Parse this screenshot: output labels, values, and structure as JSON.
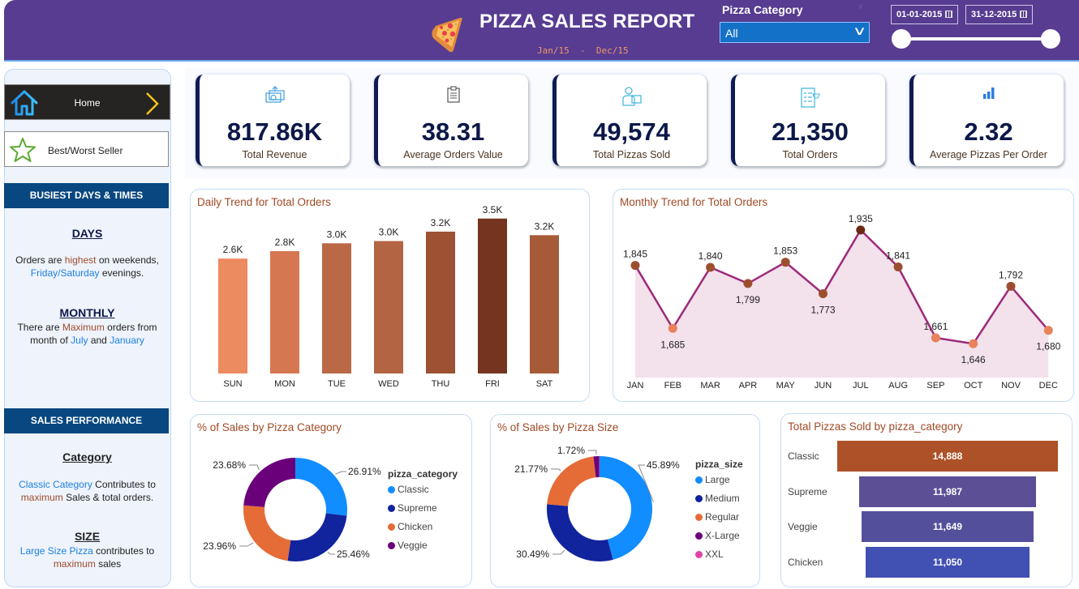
{
  "header": {
    "title": "PIZZA SALES REPORT",
    "subtitle": "Jan/15  -  Dec/15",
    "filter_label": "Pizza Category",
    "filter_value": "All",
    "date_start": "01-01-2015",
    "date_end": "31-12-2015",
    "date_range_fraction": [
      0,
      1
    ],
    "bg_color": "#573c91"
  },
  "sidebar": {
    "nav": [
      {
        "label": "Home",
        "icon": "home-icon"
      },
      {
        "label": "Best/Worst Seller",
        "icon": "star-icon"
      }
    ],
    "busiest_heading": "BUSIEST DAYS & TIMES",
    "days_heading": "DAYS",
    "days_text": [
      {
        "t": "Orders are ",
        "c": ""
      },
      {
        "t": "highest",
        "c": "brown"
      },
      {
        "t": " on weekends, ",
        "c": ""
      },
      {
        "t": "Friday/Saturday",
        "c": "blue"
      },
      {
        "t": " evenings.",
        "c": ""
      }
    ],
    "monthly_heading": "MONTHLY",
    "monthly_text": [
      {
        "t": "There are ",
        "c": ""
      },
      {
        "t": "Maximum",
        "c": "brown"
      },
      {
        "t": " orders from month of ",
        "c": ""
      },
      {
        "t": "July",
        "c": "blue"
      },
      {
        "t": " and ",
        "c": ""
      },
      {
        "t": "January",
        "c": "blue"
      }
    ],
    "sales_heading": "SALES PERFORMANCE",
    "category_heading": "Category",
    "category_text": [
      {
        "t": "Classic Category",
        "c": "blue"
      },
      {
        "t": " Contributes to ",
        "c": ""
      },
      {
        "t": "maximum",
        "c": "brown"
      },
      {
        "t": " Sales & total orders.",
        "c": ""
      }
    ],
    "size_heading": "SIZE",
    "size_text": [
      {
        "t": "Large Size Pizza",
        "c": "blue"
      },
      {
        "t": " contributes to ",
        "c": ""
      },
      {
        "t": "maximum",
        "c": "brown"
      },
      {
        "t": " sales",
        "c": ""
      }
    ]
  },
  "kpis": [
    {
      "value": "817.86K",
      "label": "Total Revenue",
      "icon": "money-icon"
    },
    {
      "value": "38.31",
      "label": "Average Orders Value",
      "icon": "clipboard-icon"
    },
    {
      "value": "49,574",
      "label": "Total Pizzas Sold",
      "icon": "delivery-person-icon"
    },
    {
      "value": "21,350",
      "label": "Total Orders",
      "icon": "order-list-icon"
    },
    {
      "value": "2.32",
      "label": "Average Pizzas Per Order",
      "icon": "bar-chart-icon"
    }
  ],
  "chart_data": [
    {
      "type": "bar",
      "title": "Daily Trend for Total Orders",
      "categories": [
        "SUN",
        "MON",
        "TUE",
        "WED",
        "THU",
        "FRI",
        "SAT"
      ],
      "values": [
        2624,
        2794,
        2973,
        3024,
        3239,
        3538,
        3158
      ],
      "labels": [
        "2.6K",
        "2.8K",
        "3.0K",
        "3.0K",
        "3.2K",
        "3.5K",
        "3.2K"
      ],
      "colors": [
        "#ec8a60",
        "#d57852",
        "#bb6846",
        "#b26443",
        "#9c5233",
        "#74341f",
        "#a65a38"
      ],
      "xlabel": "",
      "ylabel": "",
      "grid": false
    },
    {
      "type": "area",
      "title": "Monthly Trend for Total Orders",
      "categories": [
        "JAN",
        "FEB",
        "MAR",
        "APR",
        "MAY",
        "JUN",
        "JUL",
        "AUG",
        "SEP",
        "OCT",
        "NOV",
        "DEC"
      ],
      "values": [
        1845,
        1685,
        1840,
        1799,
        1853,
        1773,
        1935,
        1841,
        1661,
        1646,
        1792,
        1680
      ],
      "line_color": "#9c2b7a",
      "fill_color": "#f3e1ec",
      "xlabel": "",
      "ylabel": "",
      "grid": false
    },
    {
      "type": "pie",
      "title": "% of Sales by Pizza Category",
      "legend_title": "pizza_category",
      "legend_position": "right",
      "slices": [
        {
          "name": "Classic",
          "value": 26.91,
          "color": "#118dff"
        },
        {
          "name": "Supreme",
          "value": 25.46,
          "color": "#12239e"
        },
        {
          "name": "Chicken",
          "value": 23.96,
          "color": "#e66c37"
        },
        {
          "name": "Veggie",
          "value": 23.68,
          "color": "#6b007b"
        }
      ]
    },
    {
      "type": "pie",
      "title": "% of Sales by Pizza Size",
      "legend_title": "pizza_size",
      "legend_position": "right",
      "slices": [
        {
          "name": "Large",
          "value": 45.89,
          "color": "#118dff"
        },
        {
          "name": "Medium",
          "value": 30.49,
          "color": "#12239e"
        },
        {
          "name": "Regular",
          "value": 21.77,
          "color": "#e66c37"
        },
        {
          "name": "X-Large",
          "value": 1.72,
          "color": "#6b007b"
        },
        {
          "name": "XXL",
          "value": 0.12,
          "color": "#e044a7"
        }
      ]
    },
    {
      "type": "bar",
      "title": "Total Pizzas Sold by pizza_category",
      "categories": [
        "Classic",
        "Supreme",
        "Veggie",
        "Chicken"
      ],
      "values": [
        14888,
        11987,
        11649,
        11050
      ],
      "labels": [
        "14,888",
        "11,987",
        "11,649",
        "11,050"
      ],
      "colors": [
        "#ad5128",
        "#5c4f96",
        "#544f9b",
        "#4150b3"
      ],
      "orientation": "funnel"
    }
  ]
}
